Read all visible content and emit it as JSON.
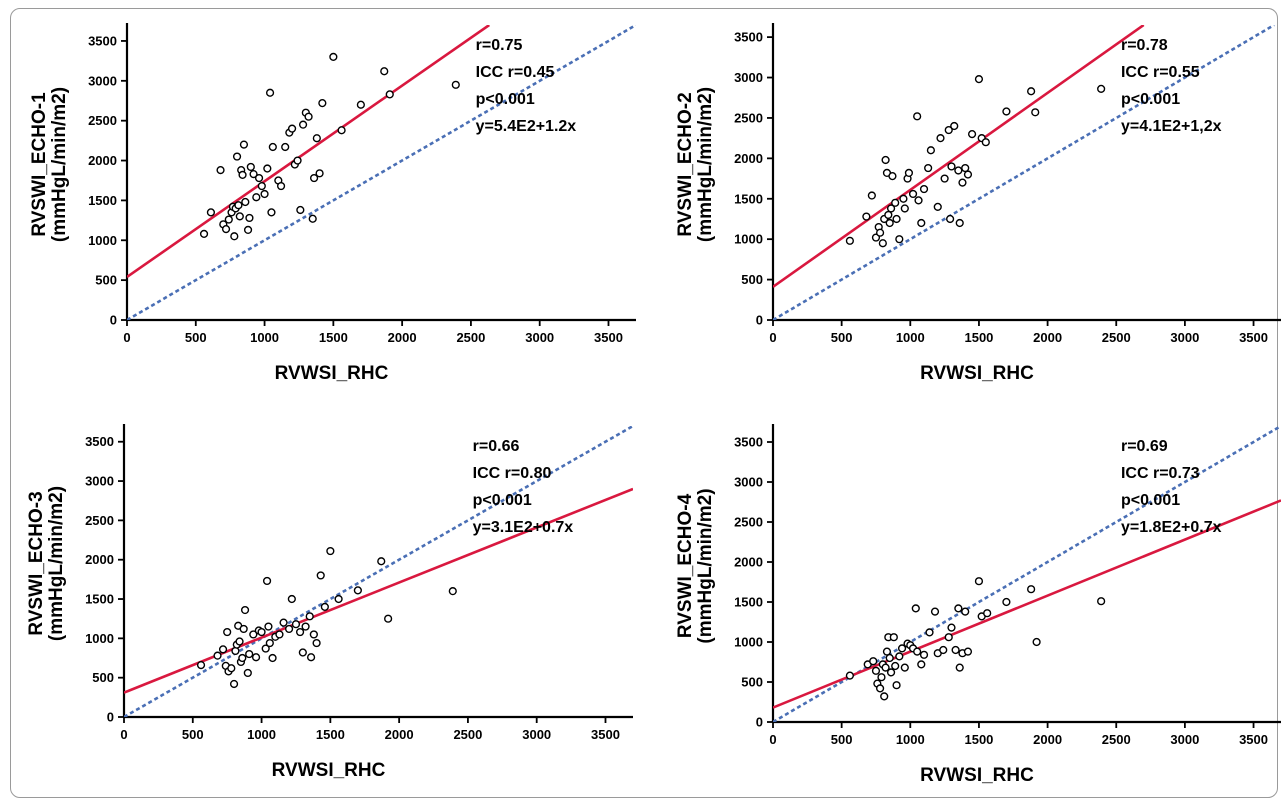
{
  "chart_data": [
    {
      "type": "scatter",
      "xlabel": "RVWSI_RHC",
      "ylabel_line1": "RVSWI_ECHO-1",
      "ylabel_line2": "(mmHgL/min/m2)",
      "xlim": [
        0,
        3700
      ],
      "ylim": [
        0,
        3700
      ],
      "xticks": [
        0,
        500,
        1000,
        1500,
        2000,
        2500,
        3000,
        3500
      ],
      "yticks": [
        0,
        500,
        1000,
        1500,
        2000,
        2500,
        3000,
        3500
      ],
      "annotations": [
        "r=0.75",
        "ICC r=0.45",
        "p<0.001",
        "y=5.4E2+1.2x"
      ],
      "fit_line": {
        "intercept": 540,
        "slope": 1.2,
        "color": "#d9183f"
      },
      "identity_line": {
        "color": "#4a6fb5"
      },
      "points": [
        [
          560,
          1080
        ],
        [
          610,
          1350
        ],
        [
          680,
          1880
        ],
        [
          700,
          1200
        ],
        [
          720,
          1140
        ],
        [
          740,
          1260
        ],
        [
          760,
          1350
        ],
        [
          770,
          1420
        ],
        [
          780,
          1050
        ],
        [
          790,
          1400
        ],
        [
          800,
          2050
        ],
        [
          810,
          1440
        ],
        [
          820,
          1300
        ],
        [
          830,
          1880
        ],
        [
          840,
          1820
        ],
        [
          850,
          2200
        ],
        [
          860,
          1480
        ],
        [
          880,
          1130
        ],
        [
          890,
          1280
        ],
        [
          900,
          1920
        ],
        [
          920,
          1830
        ],
        [
          940,
          1540
        ],
        [
          960,
          1780
        ],
        [
          980,
          1680
        ],
        [
          1000,
          1580
        ],
        [
          1020,
          1900
        ],
        [
          1040,
          2850
        ],
        [
          1050,
          1350
        ],
        [
          1060,
          2170
        ],
        [
          1100,
          1750
        ],
        [
          1120,
          1680
        ],
        [
          1150,
          2170
        ],
        [
          1180,
          2350
        ],
        [
          1200,
          2400
        ],
        [
          1220,
          1950
        ],
        [
          1240,
          2000
        ],
        [
          1260,
          1380
        ],
        [
          1280,
          2450
        ],
        [
          1300,
          2600
        ],
        [
          1320,
          2550
        ],
        [
          1350,
          1270
        ],
        [
          1360,
          1780
        ],
        [
          1380,
          2280
        ],
        [
          1400,
          1840
        ],
        [
          1420,
          2720
        ],
        [
          1500,
          3300
        ],
        [
          1560,
          2380
        ],
        [
          1700,
          2700
        ],
        [
          1870,
          3120
        ],
        [
          1910,
          2830
        ],
        [
          2390,
          2950
        ]
      ]
    },
    {
      "type": "scatter",
      "xlabel": "RVWSI_RHC",
      "ylabel_line1": "RVSWI_ECHO-2",
      "ylabel_line2": "(mmHgL/min/m2)",
      "xlim": [
        0,
        3700
      ],
      "ylim": [
        0,
        3650
      ],
      "xticks": [
        0,
        500,
        1000,
        1500,
        2000,
        2500,
        3000,
        3500
      ],
      "yticks": [
        0,
        500,
        1000,
        1500,
        2000,
        2500,
        3000,
        3500
      ],
      "annotations": [
        "r=0.78",
        "ICC r=0.55",
        "p<0.001",
        "y=4.1E2+1,2x"
      ],
      "fit_line": {
        "intercept": 410,
        "slope": 1.2,
        "color": "#d9183f"
      },
      "identity_line": {
        "color": "#4a6fb5"
      },
      "points": [
        [
          560,
          980
        ],
        [
          680,
          1280
        ],
        [
          720,
          1540
        ],
        [
          750,
          1020
        ],
        [
          770,
          1150
        ],
        [
          780,
          1080
        ],
        [
          800,
          950
        ],
        [
          810,
          1250
        ],
        [
          820,
          1980
        ],
        [
          830,
          1820
        ],
        [
          840,
          1300
        ],
        [
          850,
          1200
        ],
        [
          860,
          1380
        ],
        [
          870,
          1780
        ],
        [
          890,
          1450
        ],
        [
          900,
          1250
        ],
        [
          920,
          1000
        ],
        [
          950,
          1500
        ],
        [
          960,
          1380
        ],
        [
          980,
          1750
        ],
        [
          990,
          1820
        ],
        [
          1020,
          1560
        ],
        [
          1050,
          2520
        ],
        [
          1060,
          1480
        ],
        [
          1080,
          1200
        ],
        [
          1100,
          1620
        ],
        [
          1130,
          1880
        ],
        [
          1150,
          2100
        ],
        [
          1200,
          1400
        ],
        [
          1220,
          2250
        ],
        [
          1250,
          1750
        ],
        [
          1280,
          2350
        ],
        [
          1290,
          1250
        ],
        [
          1300,
          1900
        ],
        [
          1320,
          2400
        ],
        [
          1350,
          1850
        ],
        [
          1360,
          1200
        ],
        [
          1380,
          1700
        ],
        [
          1400,
          1880
        ],
        [
          1420,
          1800
        ],
        [
          1450,
          2300
        ],
        [
          1500,
          2980
        ],
        [
          1520,
          2250
        ],
        [
          1550,
          2200
        ],
        [
          1700,
          2580
        ],
        [
          1880,
          2830
        ],
        [
          1910,
          2570
        ],
        [
          2390,
          2860
        ]
      ]
    },
    {
      "type": "scatter",
      "xlabel": "RVWSI_RHC",
      "ylabel_line1": "RVSWI_ECHO-3",
      "ylabel_line2": "(mmHgL/min/m2)",
      "xlim": [
        0,
        3700
      ],
      "ylim": [
        0,
        3700
      ],
      "xticks": [
        0,
        500,
        1000,
        1500,
        2000,
        2500,
        3000,
        3500
      ],
      "yticks": [
        0,
        500,
        1000,
        1500,
        2000,
        2500,
        3000,
        3500
      ],
      "annotations": [
        "r=0.66",
        "ICC r=0.80",
        "p<0.001",
        "y=3.1E2+0.7x"
      ],
      "fit_line": {
        "intercept": 310,
        "slope": 0.7,
        "color": "#d9183f"
      },
      "identity_line": {
        "color": "#4a6fb5"
      },
      "points": [
        [
          560,
          660
        ],
        [
          680,
          780
        ],
        [
          720,
          860
        ],
        [
          740,
          650
        ],
        [
          750,
          1080
        ],
        [
          760,
          580
        ],
        [
          780,
          620
        ],
        [
          800,
          420
        ],
        [
          810,
          840
        ],
        [
          820,
          920
        ],
        [
          830,
          1160
        ],
        [
          840,
          960
        ],
        [
          850,
          700
        ],
        [
          860,
          750
        ],
        [
          870,
          1120
        ],
        [
          880,
          1360
        ],
        [
          900,
          560
        ],
        [
          910,
          800
        ],
        [
          940,
          1050
        ],
        [
          960,
          760
        ],
        [
          980,
          1100
        ],
        [
          1000,
          1080
        ],
        [
          1030,
          870
        ],
        [
          1040,
          1730
        ],
        [
          1050,
          1150
        ],
        [
          1060,
          940
        ],
        [
          1080,
          750
        ],
        [
          1100,
          1020
        ],
        [
          1130,
          1050
        ],
        [
          1160,
          1200
        ],
        [
          1200,
          1120
        ],
        [
          1220,
          1500
        ],
        [
          1250,
          1180
        ],
        [
          1280,
          1080
        ],
        [
          1300,
          820
        ],
        [
          1320,
          1150
        ],
        [
          1350,
          1280
        ],
        [
          1360,
          760
        ],
        [
          1380,
          1050
        ],
        [
          1400,
          940
        ],
        [
          1430,
          1800
        ],
        [
          1460,
          1400
        ],
        [
          1500,
          2110
        ],
        [
          1560,
          1500
        ],
        [
          1700,
          1610
        ],
        [
          1870,
          1980
        ],
        [
          1920,
          1250
        ],
        [
          2390,
          1600
        ]
      ]
    },
    {
      "type": "scatter",
      "xlabel": "RVWSI_RHC",
      "ylabel_line1": "RVSWI_ECHO-4",
      "ylabel_line2": "(mmHgL/min/m2)",
      "xlim": [
        0,
        3700
      ],
      "ylim": [
        0,
        3700
      ],
      "xticks": [
        0,
        500,
        1000,
        1500,
        2000,
        2500,
        3000,
        3500
      ],
      "yticks": [
        0,
        500,
        1000,
        1500,
        2000,
        2500,
        3000,
        3500
      ],
      "annotations": [
        "r=0.69",
        "ICC r=0.73",
        "p<0.001",
        "y=1.8E2+0.7x"
      ],
      "fit_line": {
        "intercept": 180,
        "slope": 0.7,
        "color": "#d9183f"
      },
      "identity_line": {
        "color": "#4a6fb5"
      },
      "points": [
        [
          560,
          580
        ],
        [
          690,
          720
        ],
        [
          730,
          760
        ],
        [
          750,
          640
        ],
        [
          760,
          480
        ],
        [
          780,
          420
        ],
        [
          790,
          560
        ],
        [
          800,
          720
        ],
        [
          810,
          320
        ],
        [
          820,
          680
        ],
        [
          830,
          880
        ],
        [
          840,
          1060
        ],
        [
          850,
          800
        ],
        [
          860,
          620
        ],
        [
          880,
          1060
        ],
        [
          890,
          700
        ],
        [
          900,
          460
        ],
        [
          920,
          820
        ],
        [
          940,
          920
        ],
        [
          960,
          680
        ],
        [
          980,
          980
        ],
        [
          1000,
          960
        ],
        [
          1020,
          920
        ],
        [
          1040,
          1420
        ],
        [
          1050,
          880
        ],
        [
          1080,
          720
        ],
        [
          1100,
          840
        ],
        [
          1140,
          1120
        ],
        [
          1180,
          1380
        ],
        [
          1200,
          860
        ],
        [
          1240,
          900
        ],
        [
          1280,
          1060
        ],
        [
          1300,
          1180
        ],
        [
          1330,
          900
        ],
        [
          1350,
          1420
        ],
        [
          1360,
          680
        ],
        [
          1380,
          860
        ],
        [
          1400,
          1380
        ],
        [
          1420,
          880
        ],
        [
          1500,
          1760
        ],
        [
          1520,
          1320
        ],
        [
          1560,
          1360
        ],
        [
          1700,
          1500
        ],
        [
          1880,
          1660
        ],
        [
          1920,
          1000
        ],
        [
          2390,
          1510
        ]
      ]
    }
  ]
}
